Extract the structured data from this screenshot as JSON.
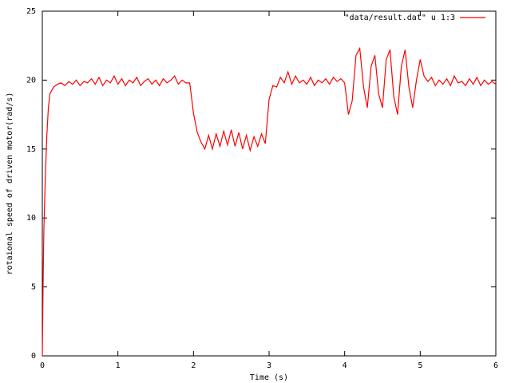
{
  "chart_data": {
    "type": "line",
    "x_label": "Time (s)",
    "y_label": "rotaional speed of driven motor(rad/s)",
    "xlim": [
      0,
      6
    ],
    "xticks": [
      0,
      1,
      2,
      3,
      4,
      5,
      6
    ],
    "ylim": [
      0,
      25
    ],
    "yticks": [
      0,
      5,
      10,
      15,
      20,
      25
    ],
    "grid": false,
    "legend": "top-right",
    "series": [
      {
        "name": "\"data/result.dat\" u 1:3",
        "color": "#ff0000",
        "x": [
          0,
          0.01,
          0.02,
          0.04,
          0.06,
          0.08,
          0.1,
          0.15,
          0.2,
          0.25,
          0.3,
          0.35,
          0.4,
          0.45,
          0.5,
          0.55,
          0.6,
          0.65,
          0.7,
          0.75,
          0.8,
          0.85,
          0.9,
          0.95,
          1.0,
          1.05,
          1.1,
          1.15,
          1.2,
          1.25,
          1.3,
          1.35,
          1.4,
          1.45,
          1.5,
          1.55,
          1.6,
          1.65,
          1.7,
          1.75,
          1.8,
          1.85,
          1.9,
          1.95,
          2.0,
          2.05,
          2.1,
          2.15,
          2.2,
          2.25,
          2.3,
          2.35,
          2.4,
          2.45,
          2.5,
          2.55,
          2.6,
          2.65,
          2.7,
          2.75,
          2.8,
          2.85,
          2.9,
          2.95,
          3.0,
          3.05,
          3.1,
          3.15,
          3.2,
          3.25,
          3.3,
          3.35,
          3.4,
          3.45,
          3.5,
          3.55,
          3.6,
          3.65,
          3.7,
          3.75,
          3.8,
          3.85,
          3.9,
          3.95,
          4.0,
          4.05,
          4.1,
          4.15,
          4.2,
          4.25,
          4.3,
          4.35,
          4.4,
          4.45,
          4.5,
          4.55,
          4.6,
          4.65,
          4.7,
          4.75,
          4.8,
          4.85,
          4.9,
          4.95,
          5.0,
          5.05,
          5.1,
          5.15,
          5.2,
          5.25,
          5.3,
          5.35,
          5.4,
          5.45,
          5.5,
          5.55,
          5.6,
          5.65,
          5.7,
          5.75,
          5.8,
          5.85,
          5.9,
          5.95,
          6.0
        ],
        "values": [
          0,
          5,
          9,
          13,
          16,
          18,
          19,
          19.5,
          19.7,
          19.8,
          19.6,
          19.9,
          19.7,
          20.0,
          19.6,
          19.9,
          19.8,
          20.1,
          19.7,
          20.2,
          19.6,
          20.0,
          19.8,
          20.3,
          19.7,
          20.1,
          19.6,
          20.0,
          19.8,
          20.2,
          19.6,
          19.9,
          20.1,
          19.7,
          20.0,
          19.6,
          20.1,
          19.8,
          20.0,
          20.3,
          19.7,
          20.0,
          19.8,
          19.8,
          17.6,
          16.2,
          15.5,
          15.0,
          16.0,
          15.0,
          16.1,
          15.2,
          16.3,
          15.3,
          16.4,
          15.2,
          16.2,
          15.0,
          16.0,
          14.9,
          15.9,
          15.2,
          16.1,
          15.4,
          18.6,
          19.6,
          19.5,
          20.2,
          19.8,
          20.6,
          19.7,
          20.3,
          19.8,
          20.0,
          19.7,
          20.2,
          19.6,
          20.0,
          19.8,
          20.1,
          19.7,
          20.2,
          19.9,
          20.1,
          19.8,
          17.5,
          18.5,
          21.8,
          22.3,
          19.5,
          18.0,
          21.0,
          21.8,
          19.0,
          18.0,
          21.5,
          22.2,
          18.8,
          17.5,
          21.0,
          22.2,
          19.5,
          18.0,
          20.0,
          21.5,
          20.3,
          19.9,
          20.2,
          19.6,
          20.0,
          19.7,
          20.1,
          19.6,
          20.3,
          19.8,
          19.9,
          19.6,
          20.1,
          19.7,
          20.2,
          19.6,
          20.0,
          19.7,
          19.9,
          19.7
        ]
      }
    ]
  }
}
